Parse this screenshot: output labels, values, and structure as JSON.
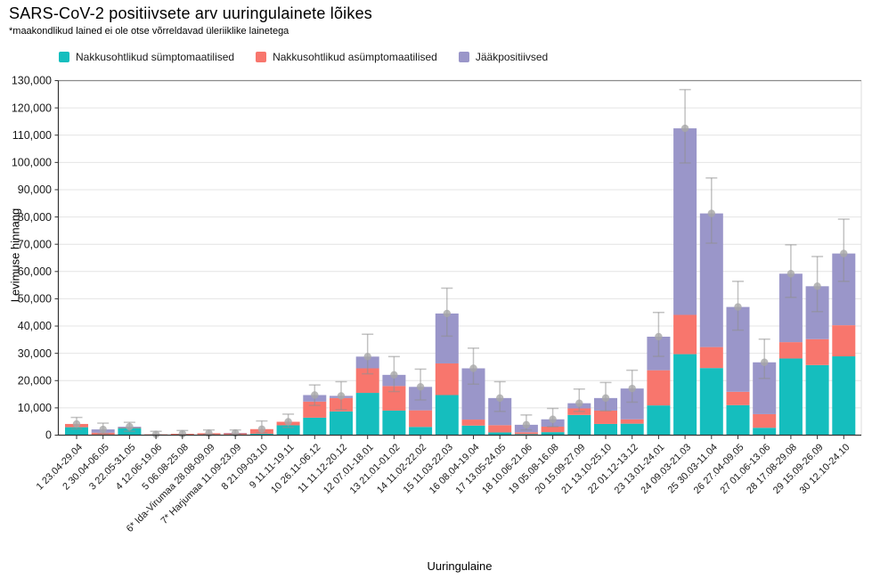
{
  "header": {
    "title": "SARS-CoV-2 positiivsete arv uuringulainete lõikes",
    "subtitle": "*maakondlikud lained ei ole otse võrreldavad üleriiklike lainetega"
  },
  "legend": {
    "items": [
      {
        "label": "Nakkusohtlikud sümptomaatilised",
        "color": "#15bebe"
      },
      {
        "label": "Nakkusohtlikud asümptomaatilised",
        "color": "#f8766d"
      },
      {
        "label": "Jääkpositiivsed",
        "color": "#9a96c9"
      }
    ]
  },
  "chart_data": {
    "type": "bar",
    "stacked": true,
    "title": "SARS-CoV-2 positiivsete arv uuringulainete lõikes",
    "subtitle": "*maakondlikud lained ei ole otse võrreldavad üleriiklike lainetega",
    "xlabel": "Uuringulaine",
    "ylabel": "Levimuse hinnang",
    "ylim": [
      0,
      130000
    ],
    "ytick_step": 10000,
    "grid": true,
    "legend_position": "top-left",
    "categories": [
      "1 23.04-29.04",
      "2 30.04-06.05",
      "3 22.05-31.05",
      "4 12.06-19.06",
      "5 06.08-25.08",
      "6* Ida-Virumaa 28.08-09.09",
      "7* Harjumaa 11.09-23.09",
      "8 21.09-03.10",
      "9 11.11-19.11",
      "10 26.11-06.12",
      "11 11.12-20.12",
      "12 07.01-18.01",
      "13 21.01-01.02",
      "14 11.02-22.02",
      "15 11.03-22.03",
      "16 08.04-19.04",
      "17 13.05-24.05",
      "18 10.06-21.06",
      "19 05.08-16.08",
      "20 15.09-27.09",
      "21 13.10-25.10",
      "22 01.12-13.12",
      "23 13.01-24.01",
      "24 09.03-21.03",
      "25 30.03-11.04",
      "26 27.04-09.05",
      "27 01.06-13.06",
      "28 17.08-29.08",
      "29 15.09-26.09",
      "30 12.10-24.10"
    ],
    "series": [
      {
        "name": "Nakkusohtlikud sümptomaatilised",
        "color": "#15bebe",
        "values": [
          2900,
          200,
          2600,
          200,
          100,
          200,
          200,
          500,
          3600,
          6400,
          8700,
          15500,
          9000,
          3000,
          14700,
          3500,
          1000,
          400,
          1100,
          7400,
          4100,
          4200,
          10900,
          29700,
          24600,
          11000,
          2700,
          28100,
          25700,
          28900
        ]
      },
      {
        "name": "Nakkusohtlikud asümptomaatilised",
        "color": "#f8766d",
        "values": [
          1200,
          700,
          200,
          100,
          400,
          500,
          500,
          1700,
          1300,
          5900,
          4900,
          9000,
          9000,
          6100,
          11600,
          2200,
          2650,
          650,
          2000,
          2400,
          4900,
          1600,
          12900,
          14400,
          7700,
          4900,
          5000,
          6000,
          9500,
          11400
        ]
      },
      {
        "name": "Jääkpositiivsed",
        "color": "#9a96c9",
        "values": [
          0,
          1200,
          300,
          0,
          0,
          0,
          100,
          0,
          0,
          2400,
          800,
          4300,
          4100,
          8600,
          18300,
          18800,
          9950,
          2750,
          2700,
          1900,
          4600,
          11300,
          12300,
          68400,
          49000,
          31100,
          19000,
          25100,
          19400,
          26300
        ]
      }
    ],
    "error_bars": {
      "point": [
        4100,
        2100,
        3100,
        300,
        500,
        700,
        800,
        2200,
        4900,
        14700,
        14400,
        28800,
        22100,
        17700,
        44600,
        24500,
        13600,
        3800,
        5800,
        11700,
        13600,
        17100,
        36100,
        112500,
        81300,
        47000,
        26700,
        59200,
        54600,
        66600
      ],
      "low": [
        2300,
        600,
        1400,
        100,
        200,
        300,
        300,
        900,
        2800,
        10900,
        9300,
        22500,
        16000,
        12900,
        36300,
        18700,
        8700,
        1900,
        3100,
        8700,
        8900,
        12100,
        28900,
        99800,
        70400,
        38500,
        20800,
        50500,
        45300,
        56400
      ],
      "high": [
        6500,
        4400,
        4700,
        1400,
        1700,
        1900,
        1900,
        5200,
        7700,
        18400,
        19600,
        37000,
        28800,
        24200,
        53900,
        31900,
        19600,
        7400,
        9800,
        16900,
        19300,
        23800,
        45000,
        126700,
        94300,
        56400,
        35200,
        69800,
        65500,
        79200
      ]
    }
  }
}
